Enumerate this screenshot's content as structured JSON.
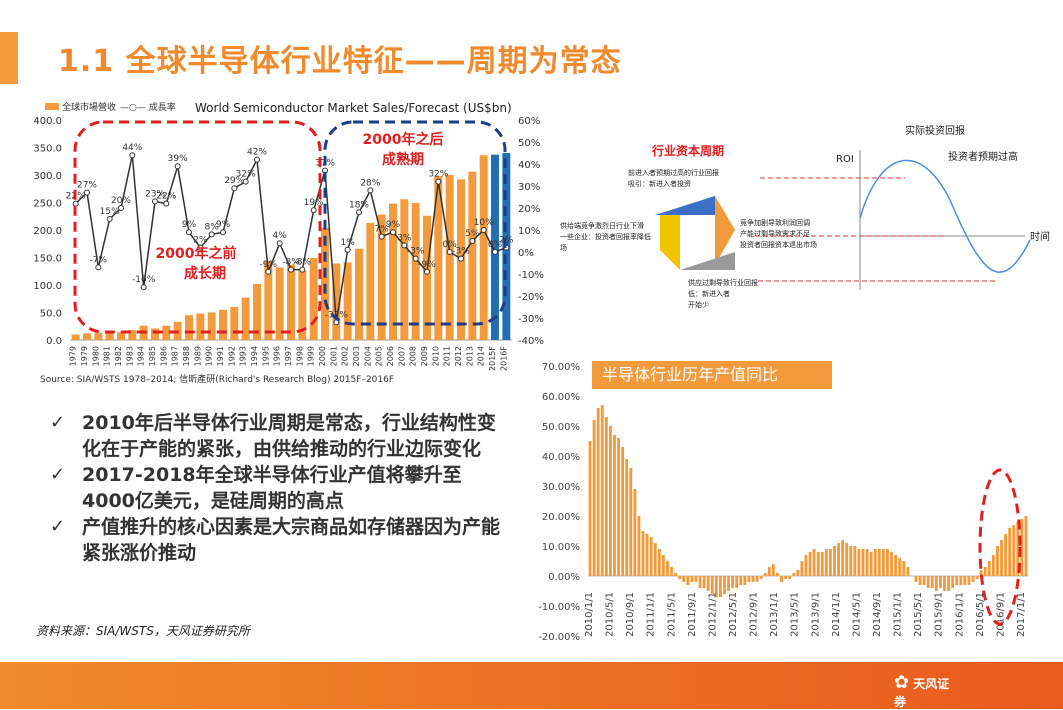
{
  "title": "1.1 全球半导体行业特征——周期为常态",
  "colors": {
    "accent": "#f39a3c",
    "bar": "#f39a3c",
    "line": "#333333",
    "red": "#e02020",
    "navy": "#1f3c88",
    "blue": "#1f6fb2"
  },
  "chart_data": [
    {
      "type": "bar",
      "title": "World Semiconductor Market Sales/Forecast (US$bn)",
      "legend": [
        "全球市場營收",
        "成長率"
      ],
      "categories": [
        "1979",
        "1979",
        "1980",
        "1981",
        "1982",
        "1983",
        "1984",
        "1985",
        "1986",
        "1987",
        "1988",
        "1989",
        "1990",
        "1991",
        "1992",
        "1993",
        "1994",
        "1995",
        "1996",
        "1997",
        "1998",
        "1999",
        "2000",
        "2001",
        "2002",
        "2003",
        "2004",
        "2005",
        "2006",
        "2007",
        "2008",
        "2009",
        "2010",
        "2011",
        "2012",
        "2013",
        "2014",
        "2015F",
        "2016F"
      ],
      "series": [
        {
          "name": "全球市場營收",
          "axis": "left",
          "values": [
            10,
            12,
            13,
            14,
            14,
            18,
            26,
            21,
            26,
            33,
            45,
            48,
            50,
            55,
            60,
            77,
            102,
            144,
            132,
            137,
            126,
            149,
            204,
            139,
            141,
            166,
            213,
            228,
            248,
            256,
            249,
            226,
            298,
            300,
            292,
            306,
            336,
            337,
            340
          ]
        },
        {
          "name": "成長率",
          "axis": "right",
          "values": [
            22,
            27,
            -7,
            15,
            20,
            44,
            -16,
            23,
            22,
            39,
            9,
            2,
            8,
            9,
            29,
            32,
            42,
            -9,
            4,
            -8,
            -8,
            19,
            37,
            -32,
            1,
            18,
            28,
            7,
            9,
            3,
            -3,
            -9,
            32,
            0,
            -3,
            5,
            10,
            0,
            2
          ]
        }
      ],
      "ylim_left": [
        0,
        400
      ],
      "yticks_left": [
        "0.0",
        "50.0",
        "100.0",
        "150.0",
        "200.0",
        "250.0",
        "300.0",
        "350.0",
        "400.0"
      ],
      "ylim_right": [
        -40,
        60
      ],
      "yticks_right": [
        "-40%",
        "-30%",
        "-20%",
        "-10%",
        "0%",
        "10%",
        "20%",
        "30%",
        "40%",
        "50%",
        "60%"
      ],
      "annotations": [
        {
          "text": "2000年之前",
          "text2": "成长期"
        },
        {
          "text": "2000年之后",
          "text2": "成熟期"
        }
      ],
      "source": "Source: SIA/WSTS 1978–2014; 信昕產研(Richard's Research Blog) 2015F–2016F"
    },
    {
      "type": "bar",
      "title": "半导体行业历年产值同比",
      "ylim": [
        -20,
        70
      ],
      "yticks": [
        "-20.00%",
        "-10.00%",
        "0.00%",
        "10.00%",
        "20.00%",
        "30.00%",
        "40.00%",
        "50.00%",
        "60.00%",
        "70.00%"
      ],
      "xticks": [
        "2010/1/1",
        "2010/5/1",
        "2010/9/1",
        "2011/1/1",
        "2011/5/1",
        "2011/9/1",
        "2012/1/1",
        "2012/5/1",
        "2012/9/1",
        "2013/1/1",
        "2013/5/1",
        "2013/9/1",
        "2014/1/1",
        "2014/5/1",
        "2014/9/1",
        "2015/1/1",
        "2015/5/1",
        "2015/9/1",
        "2016/1/1",
        "2016/5/1",
        "2016/9/1",
        "2017/1/1"
      ],
      "values": [
        45,
        52,
        56,
        57,
        53,
        50,
        47,
        46,
        43,
        39,
        36,
        29,
        20,
        15,
        14,
        13,
        11,
        9,
        7,
        5,
        3,
        1,
        -1,
        -2,
        -3,
        -2,
        -2,
        -4,
        -4,
        -5,
        -6,
        -7,
        -7,
        -6,
        -5,
        -4,
        -4,
        -3,
        -3,
        -2,
        -2,
        -2,
        -1,
        1,
        3,
        4,
        1,
        -2,
        -1,
        -1,
        1,
        2,
        5,
        7,
        8,
        9,
        8,
        8,
        9,
        9,
        10,
        11,
        12,
        11,
        10,
        10,
        9,
        9,
        9,
        8,
        9,
        9,
        9,
        9,
        8,
        7,
        6,
        5,
        3,
        0,
        -2,
        -3,
        -3,
        -4,
        -4,
        -5,
        -4,
        -5,
        -5,
        -4,
        -3,
        -3,
        -3,
        -3,
        -2,
        -1,
        2,
        3,
        5,
        7,
        10,
        12,
        14,
        16,
        17,
        18,
        19,
        20
      ]
    },
    {
      "type": "line",
      "title": "行业资本周期",
      "labels": {
        "roi": "ROI",
        "time": "时间",
        "actual": "实际投资回报",
        "expected": "投资者预期过高"
      },
      "wedge_labels": [
        "前进入者预期过高的行业回报\n吸引：新进入者投资",
        "供给端竞争激烈日行业下滑\n一些企业：投资者回报率降低\n场",
        "竞争加剧导致利润回调\n产能过剩导致需求不足\n投资者回报资本退出市场",
        "供应过剩导致行业回报\n低：新进入者\n开始少"
      ]
    }
  ],
  "bullets": [
    "2010年后半导体行业周期是常态，行业结构性变化在于产能的紧张，由供给推动的行业边际变化",
    "2017-2018年全球半导体行业产值将攀升至4000亿美元，是硅周期的高点",
    "产值推升的核心因素是大宗商品如存储器因为产能紧张涨价推动"
  ],
  "source_note": "资料来源：SIA/WSTS，天风证券研究所",
  "logo": "天风证券"
}
